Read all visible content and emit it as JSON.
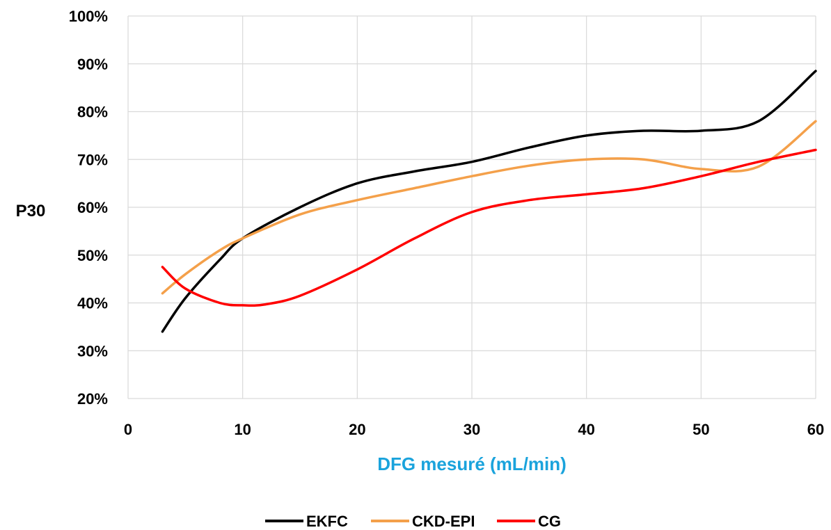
{
  "chart_data": {
    "type": "line",
    "xlabel": "DFG mesuré (mL/min)",
    "ylabel": "P30",
    "xlim": [
      0,
      60
    ],
    "ylim": [
      20,
      100
    ],
    "x_ticks": [
      0,
      10,
      20,
      30,
      40,
      50,
      60
    ],
    "y_ticks": [
      20,
      30,
      40,
      50,
      60,
      70,
      80,
      90,
      100
    ],
    "x_tick_labels": [
      "0",
      "10",
      "20",
      "30",
      "40",
      "50",
      "60"
    ],
    "y_tick_labels": [
      "20%",
      "30%",
      "40%",
      "50%",
      "60%",
      "70%",
      "80%",
      "90%",
      "100%"
    ],
    "grid": true,
    "legend_position": "bottom",
    "colors": {
      "xlabel": "#1aa3dc"
    },
    "series": [
      {
        "name": "EKFC",
        "color": "#000000",
        "x": [
          3,
          5,
          8,
          10,
          15,
          20,
          25,
          30,
          35,
          40,
          45,
          50,
          55,
          60
        ],
        "y": [
          34,
          41,
          49,
          53.5,
          60,
          65,
          67.5,
          69.5,
          72.5,
          75,
          76,
          76,
          78,
          88.5
        ]
      },
      {
        "name": "CKD-EPI",
        "color": "#f4a04a",
        "x": [
          3,
          5,
          8,
          10,
          15,
          20,
          25,
          30,
          35,
          40,
          45,
          50,
          55,
          60
        ],
        "y": [
          42,
          46,
          51,
          53.5,
          58.5,
          61.5,
          64,
          66.5,
          68.7,
          70,
          70,
          68,
          68.5,
          78
        ]
      },
      {
        "name": "CG",
        "color": "#ff0000",
        "x": [
          3,
          5,
          8,
          10,
          12,
          15,
          20,
          25,
          30,
          35,
          40,
          45,
          50,
          55,
          60
        ],
        "y": [
          47.5,
          43,
          40,
          39.5,
          39.7,
          41.5,
          47,
          53.5,
          59,
          61.5,
          62.7,
          64,
          66.5,
          69.5,
          72
        ]
      }
    ]
  }
}
